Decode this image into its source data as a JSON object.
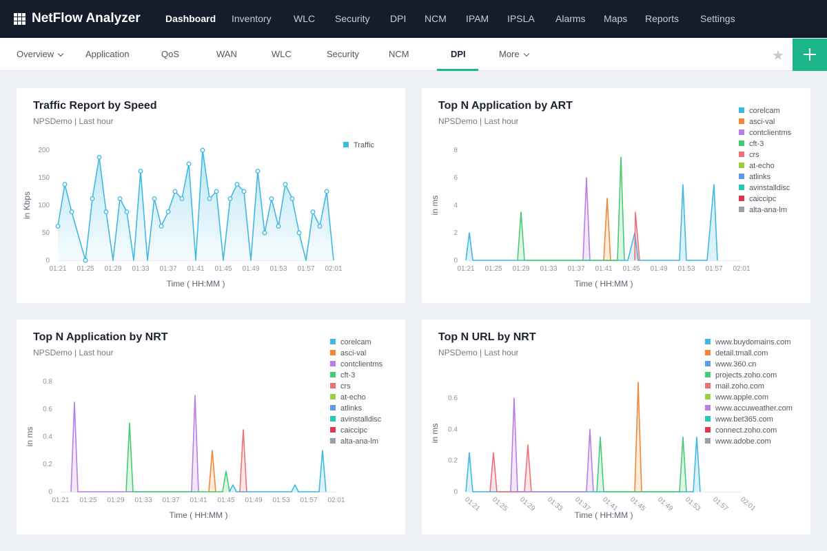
{
  "topnav": {
    "brand": "NetFlow Analyzer",
    "items": [
      "Dashboard",
      "Inventory",
      "WLC",
      "Security",
      "DPI",
      "NCM",
      "IPAM",
      "IPSLA",
      "Alarms",
      "Maps",
      "Reports",
      "Settings"
    ],
    "active": "Dashboard"
  },
  "subnav": {
    "items": [
      "Overview",
      "Application",
      "QoS",
      "WAN",
      "WLC",
      "Security",
      "NCM",
      "DPI",
      "More"
    ],
    "active": "DPI",
    "icons": {
      "favorite": "star-icon",
      "add": "plus-icon",
      "apps": "grid-icon"
    }
  },
  "colors": {
    "accent": "#1db68a",
    "topnav": "#151d2c",
    "traffic": "#3fb8e4"
  },
  "cards": [
    {
      "title": "Traffic Report by Speed",
      "subtitle": "NPSDemo | Last hour",
      "legend": [
        {
          "name": "Traffic",
          "color": "#3fb8e4"
        }
      ],
      "chart_data": {
        "type": "area",
        "ylabel": "in Kbps",
        "xlabel": "Time ( HH:MM )",
        "xticks": [
          "01:21",
          "01:25",
          "01:29",
          "01:33",
          "01:37",
          "01:41",
          "01:45",
          "01:49",
          "01:53",
          "01:57",
          "02:01"
        ],
        "yticks": [
          "0",
          "50",
          "100",
          "150",
          "200"
        ],
        "ylim": [
          0,
          200
        ],
        "series": [
          {
            "name": "Traffic",
            "color": "#3fb8e4",
            "points": [
              [
                0,
                62
              ],
              [
                1,
                138
              ],
              [
                2,
                88
              ],
              [
                4,
                0
              ],
              [
                5,
                112
              ],
              [
                6,
                187
              ],
              [
                7,
                88
              ],
              [
                8,
                0
              ],
              [
                9,
                112
              ],
              [
                10,
                88
              ],
              [
                11,
                0
              ],
              [
                12,
                162
              ],
              [
                13,
                0
              ],
              [
                14,
                112
              ],
              [
                15,
                62
              ],
              [
                16,
                88
              ],
              [
                17,
                125
              ],
              [
                18,
                112
              ],
              [
                19,
                175
              ],
              [
                20,
                0
              ],
              [
                21,
                200
              ],
              [
                22,
                112
              ],
              [
                23,
                125
              ],
              [
                24,
                0
              ],
              [
                25,
                112
              ],
              [
                26,
                138
              ],
              [
                27,
                125
              ],
              [
                28,
                0
              ],
              [
                29,
                162
              ],
              [
                30,
                50
              ],
              [
                31,
                112
              ],
              [
                32,
                62
              ],
              [
                33,
                138
              ],
              [
                34,
                112
              ],
              [
                35,
                50
              ],
              [
                36,
                0
              ],
              [
                37,
                88
              ],
              [
                38,
                62
              ],
              [
                39,
                125
              ],
              [
                40,
                0
              ]
            ]
          }
        ]
      }
    },
    {
      "title": "Top N Application by ART",
      "subtitle": "NPSDemo | Last hour",
      "legend": [
        {
          "name": "corelcam",
          "color": "#3fb8e4"
        },
        {
          "name": "asci-val",
          "color": "#f0883a"
        },
        {
          "name": "contclientms",
          "color": "#b77ee6"
        },
        {
          "name": "cft-3",
          "color": "#45cb71"
        },
        {
          "name": "crs",
          "color": "#ec6f7a"
        },
        {
          "name": "at-echo",
          "color": "#9ccd3c"
        },
        {
          "name": "atlinks",
          "color": "#5b9be8"
        },
        {
          "name": "avinstalldisc",
          "color": "#2ac6b3"
        },
        {
          "name": "caiccipc",
          "color": "#e0344f"
        },
        {
          "name": "alta-ana-lm",
          "color": "#9aa0a8"
        }
      ],
      "chart_data": {
        "type": "line",
        "ylabel": "in ms",
        "xlabel": "Time ( HH:MM )",
        "xticks": [
          "01:21",
          "01:25",
          "01:29",
          "01:33",
          "01:37",
          "01:41",
          "01:45",
          "01:49",
          "01:53",
          "01:57",
          "02:01"
        ],
        "yticks": [
          "0",
          "2",
          "4",
          "6",
          "8"
        ],
        "ylim": [
          0,
          8
        ],
        "series": [
          {
            "name": "corelcam",
            "color": "#3fb8e4",
            "points": [
              [
                0,
                0
              ],
              [
                0.5,
                2
              ],
              [
                1,
                0
              ],
              [
                23.5,
                0
              ],
              [
                24.5,
                2
              ],
              [
                25,
                0
              ],
              [
                31,
                0
              ],
              [
                31.5,
                5.5
              ],
              [
                32,
                0
              ],
              [
                35,
                0
              ],
              [
                36,
                5.5
              ],
              [
                36.5,
                0
              ]
            ]
          },
          {
            "name": "asci-val",
            "color": "#f0883a",
            "points": [
              [
                20,
                0
              ],
              [
                20.5,
                4.5
              ],
              [
                21,
                0
              ]
            ]
          },
          {
            "name": "contclientms",
            "color": "#b77ee6",
            "points": [
              [
                17,
                0
              ],
              [
                17.5,
                6
              ],
              [
                18,
                0
              ]
            ]
          },
          {
            "name": "cft-3",
            "color": "#45cb71",
            "points": [
              [
                7.5,
                0
              ],
              [
                8,
                3.5
              ],
              [
                8.5,
                0
              ],
              [
                22,
                0
              ],
              [
                22.5,
                7.5
              ],
              [
                23,
                0
              ]
            ]
          },
          {
            "name": "crs",
            "color": "#ec6f7a",
            "points": [
              [
                24.5,
                0
              ],
              [
                24.6,
                3.5
              ],
              [
                25.2,
                0
              ]
            ]
          }
        ]
      }
    },
    {
      "title": "Top N Application by NRT",
      "subtitle": "NPSDemo | Last hour",
      "legend": [
        {
          "name": "corelcam",
          "color": "#3fb8e4"
        },
        {
          "name": "asci-val",
          "color": "#f0883a"
        },
        {
          "name": "contclientms",
          "color": "#b77ee6"
        },
        {
          "name": "cft-3",
          "color": "#45cb71"
        },
        {
          "name": "crs",
          "color": "#ec6f7a"
        },
        {
          "name": "at-echo",
          "color": "#9ccd3c"
        },
        {
          "name": "atlinks",
          "color": "#5b9be8"
        },
        {
          "name": "avinstalldisc",
          "color": "#2ac6b3"
        },
        {
          "name": "caiccipc",
          "color": "#e0344f"
        },
        {
          "name": "alta-ana-lm",
          "color": "#9aa0a8"
        }
      ],
      "chart_data": {
        "type": "line",
        "ylabel": "in ms",
        "xlabel": "Time ( HH:MM )",
        "xticks": [
          "01:21",
          "01:25",
          "01:29",
          "01:33",
          "01:37",
          "01:41",
          "01:45",
          "01:49",
          "01:53",
          "01:57",
          "02:01"
        ],
        "yticks": [
          "0",
          "0.2",
          "0.4",
          "0.6",
          "0.8"
        ],
        "ylim": [
          0,
          0.8
        ],
        "series": [
          {
            "name": "contclientms",
            "color": "#b77ee6",
            "points": [
              [
                1.5,
                0
              ],
              [
                2,
                0.65
              ],
              [
                2.5,
                0
              ],
              [
                19,
                0
              ],
              [
                19.5,
                0.7
              ],
              [
                20,
                0
              ]
            ]
          },
          {
            "name": "cft-3",
            "color": "#45cb71",
            "points": [
              [
                9.5,
                0
              ],
              [
                10,
                0.5
              ],
              [
                10.5,
                0
              ],
              [
                23.5,
                0
              ],
              [
                24,
                0.15
              ],
              [
                24.5,
                0
              ]
            ]
          },
          {
            "name": "asci-val",
            "color": "#f0883a",
            "points": [
              [
                21.5,
                0
              ],
              [
                22,
                0.3
              ],
              [
                22.5,
                0
              ]
            ]
          },
          {
            "name": "corelcam",
            "color": "#3fb8e4",
            "points": [
              [
                24.5,
                0
              ],
              [
                25,
                0.05
              ],
              [
                25.5,
                0
              ],
              [
                33.5,
                0
              ],
              [
                34,
                0.05
              ],
              [
                34.5,
                0
              ],
              [
                37.5,
                0
              ],
              [
                38,
                0.3
              ],
              [
                38.5,
                0
              ]
            ]
          },
          {
            "name": "crs",
            "color": "#ec6f7a",
            "points": [
              [
                26,
                0
              ],
              [
                26.5,
                0.45
              ],
              [
                27,
                0
              ]
            ]
          }
        ]
      }
    },
    {
      "title": "Top N URL by NRT",
      "subtitle": "NPSDemo | Last hour",
      "legend": [
        {
          "name": "www.buydomains.com",
          "color": "#3fb8e4"
        },
        {
          "name": "detail.tmall.com",
          "color": "#f0883a"
        },
        {
          "name": "www.360.cn",
          "color": "#5b9be8"
        },
        {
          "name": "projects.zoho.com",
          "color": "#45cb71"
        },
        {
          "name": "mail.zoho.com",
          "color": "#ec6f7a"
        },
        {
          "name": "www.apple.com",
          "color": "#9ccd3c"
        },
        {
          "name": "www.accuweather.com",
          "color": "#b77ee6"
        },
        {
          "name": "www.bet365.com",
          "color": "#2ac6b3"
        },
        {
          "name": "connect.zoho.com",
          "color": "#e0344f"
        },
        {
          "name": "www.adobe.com",
          "color": "#9aa0a8"
        }
      ],
      "chart_data": {
        "type": "line",
        "ylabel": "in ms",
        "xlabel": "Time ( HH:MM )",
        "xticks": [
          "01:21",
          "01:25",
          "01:29",
          "01:33",
          "01:37",
          "01:41",
          "01:45",
          "01:49",
          "01:53",
          "01:57",
          "02:01"
        ],
        "yticks": [
          "0",
          "0.2",
          "0.4",
          "0.6"
        ],
        "ylim": [
          0,
          0.75
        ],
        "series": [
          {
            "name": "www.buydomains.com",
            "color": "#3fb8e4",
            "points": [
              [
                0,
                0
              ],
              [
                0.5,
                0.25
              ],
              [
                1,
                0
              ],
              [
                33,
                0
              ],
              [
                33.5,
                0.35
              ],
              [
                34,
                0
              ]
            ]
          },
          {
            "name": "mail.zoho.com",
            "color": "#ec6f7a",
            "points": [
              [
                3.5,
                0
              ],
              [
                4,
                0.25
              ],
              [
                4.5,
                0
              ],
              [
                8.5,
                0
              ],
              [
                9,
                0.3
              ],
              [
                9.5,
                0
              ]
            ]
          },
          {
            "name": "www.accuweather.com",
            "color": "#b77ee6",
            "points": [
              [
                6.5,
                0
              ],
              [
                7,
                0.6
              ],
              [
                7.5,
                0
              ],
              [
                17.5,
                0
              ],
              [
                18,
                0.4
              ],
              [
                18.5,
                0
              ]
            ]
          },
          {
            "name": "projects.zoho.com",
            "color": "#45cb71",
            "points": [
              [
                19,
                0
              ],
              [
                19.5,
                0.35
              ],
              [
                20,
                0
              ],
              [
                31,
                0
              ],
              [
                31.5,
                0.35
              ],
              [
                32,
                0
              ]
            ]
          },
          {
            "name": "detail.tmall.com",
            "color": "#f0883a",
            "points": [
              [
                24.5,
                0
              ],
              [
                25,
                0.7
              ],
              [
                25.5,
                0
              ]
            ]
          }
        ]
      }
    }
  ]
}
